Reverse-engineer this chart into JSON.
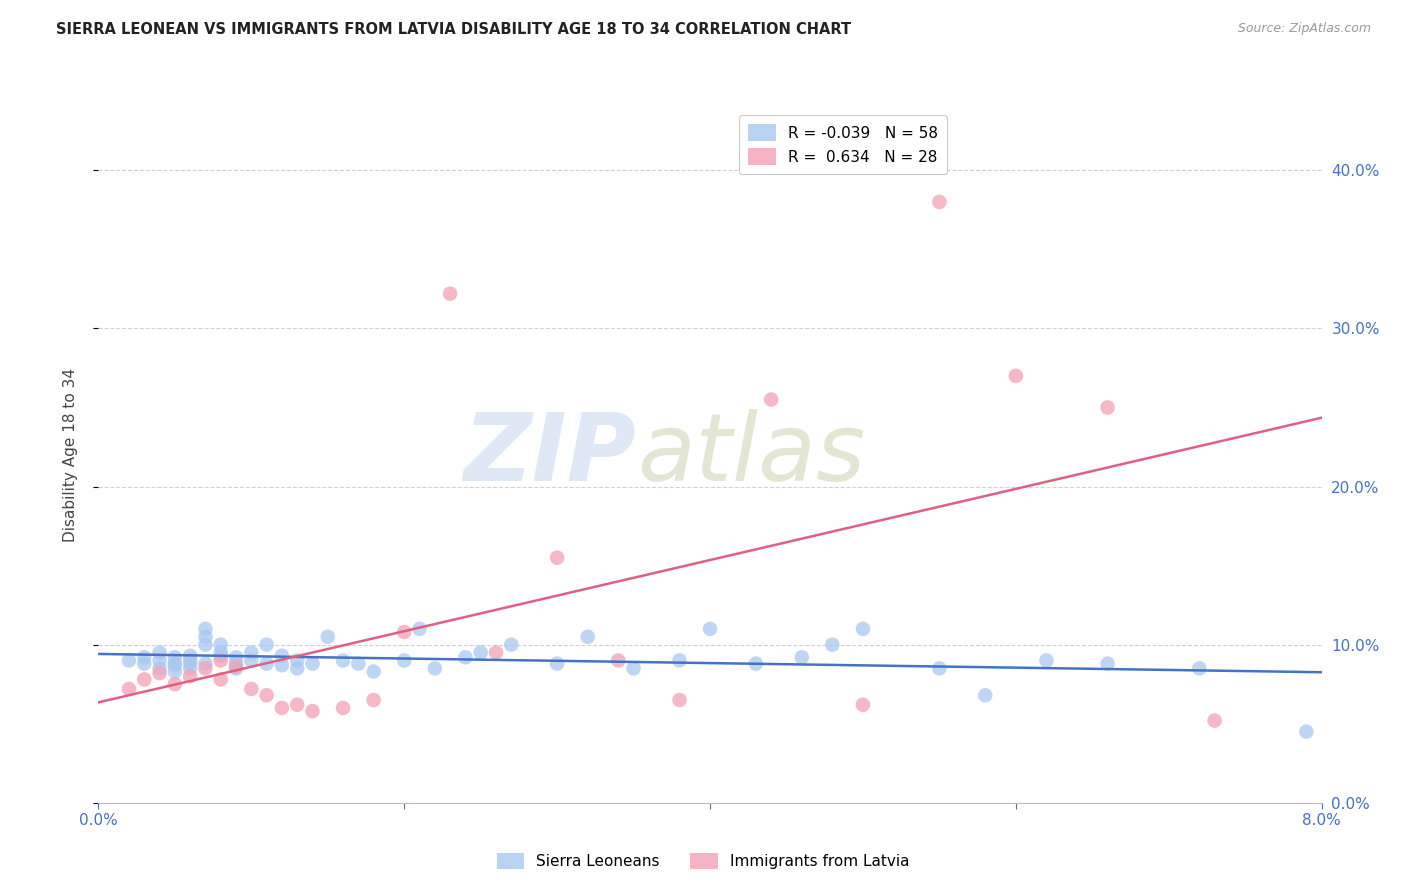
{
  "title": "SIERRA LEONEAN VS IMMIGRANTS FROM LATVIA DISABILITY AGE 18 TO 34 CORRELATION CHART",
  "source": "Source: ZipAtlas.com",
  "ylabel": "Disability Age 18 to 34",
  "xlim": [
    0.0,
    0.08
  ],
  "ylim": [
    0.0,
    0.44
  ],
  "xticks": [
    0.0,
    0.02,
    0.04,
    0.06,
    0.08
  ],
  "xtick_labels": [
    "0.0%",
    "",
    "",
    "",
    "8.0%"
  ],
  "yticks": [
    0.0,
    0.1,
    0.2,
    0.3,
    0.4
  ],
  "ytick_labels_right": [
    "0.0%",
    "10.0%",
    "20.0%",
    "30.0%",
    "40.0%"
  ],
  "legend_entries": [
    {
      "label": "R = -0.039   N = 58",
      "color": "#a8c8f0"
    },
    {
      "label": "R =  0.634   N = 28",
      "color": "#f4a0b5"
    }
  ],
  "sierra_x": [
    0.002,
    0.003,
    0.003,
    0.004,
    0.004,
    0.004,
    0.005,
    0.005,
    0.005,
    0.005,
    0.006,
    0.006,
    0.006,
    0.006,
    0.007,
    0.007,
    0.007,
    0.007,
    0.008,
    0.008,
    0.008,
    0.009,
    0.009,
    0.009,
    0.01,
    0.01,
    0.011,
    0.011,
    0.012,
    0.012,
    0.013,
    0.013,
    0.014,
    0.015,
    0.016,
    0.017,
    0.018,
    0.02,
    0.021,
    0.022,
    0.024,
    0.025,
    0.027,
    0.03,
    0.032,
    0.035,
    0.038,
    0.04,
    0.043,
    0.046,
    0.048,
    0.05,
    0.055,
    0.058,
    0.062,
    0.066,
    0.072,
    0.079
  ],
  "sierra_y": [
    0.09,
    0.088,
    0.092,
    0.085,
    0.09,
    0.095,
    0.088,
    0.092,
    0.087,
    0.083,
    0.09,
    0.093,
    0.088,
    0.085,
    0.1,
    0.11,
    0.105,
    0.088,
    0.093,
    0.095,
    0.1,
    0.088,
    0.092,
    0.085,
    0.095,
    0.09,
    0.1,
    0.088,
    0.093,
    0.087,
    0.09,
    0.085,
    0.088,
    0.105,
    0.09,
    0.088,
    0.083,
    0.09,
    0.11,
    0.085,
    0.092,
    0.095,
    0.1,
    0.088,
    0.105,
    0.085,
    0.09,
    0.11,
    0.088,
    0.092,
    0.1,
    0.11,
    0.085,
    0.068,
    0.09,
    0.088,
    0.085,
    0.045
  ],
  "latvia_x": [
    0.002,
    0.003,
    0.004,
    0.005,
    0.006,
    0.007,
    0.008,
    0.008,
    0.009,
    0.01,
    0.011,
    0.012,
    0.013,
    0.014,
    0.016,
    0.018,
    0.02,
    0.023,
    0.026,
    0.03,
    0.034,
    0.038,
    0.044,
    0.05,
    0.055,
    0.06,
    0.066,
    0.073
  ],
  "latvia_y": [
    0.072,
    0.078,
    0.082,
    0.075,
    0.08,
    0.085,
    0.078,
    0.09,
    0.086,
    0.072,
    0.068,
    0.06,
    0.062,
    0.058,
    0.06,
    0.065,
    0.108,
    0.322,
    0.095,
    0.155,
    0.09,
    0.065,
    0.255,
    0.062,
    0.38,
    0.27,
    0.25,
    0.052
  ],
  "sierra_color": "#a8c8f0",
  "latvia_color": "#f4a0b5",
  "sierra_trendline_color": "#4472c4",
  "latvia_trendline_color": "#e06080",
  "watermark_zip": "ZIP",
  "watermark_atlas": "atlas",
  "background_color": "#ffffff",
  "grid_color": "#cccccc",
  "title_color": "#222222",
  "axis_color": "#4472c4",
  "ylabel_color": "#444444"
}
